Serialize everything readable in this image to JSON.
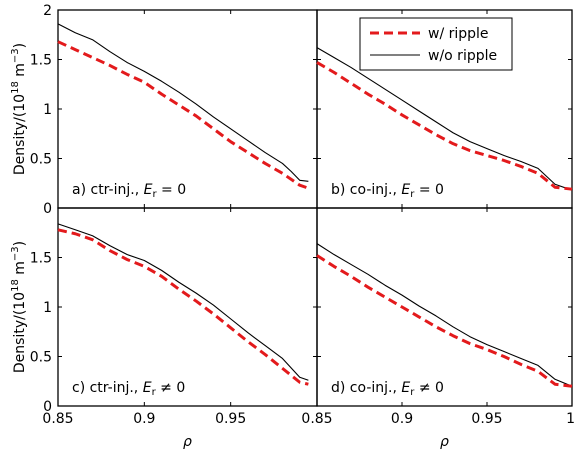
{
  "chart_data": {
    "type": "line",
    "xlabel": "ρ",
    "ylabel_main": "Density/(10",
    "ylabel_sup": "18",
    "ylabel_unit": " m",
    "ylabel_unit_sup": "−3",
    "ylabel_close": ")",
    "xlim": [
      0.85,
      1.0
    ],
    "ylim": [
      0,
      2
    ],
    "x_ticks": [
      0.85,
      0.9,
      0.95,
      1
    ],
    "x_tick_labels_left": [
      "0.85",
      "0.9",
      "0.95",
      ""
    ],
    "x_tick_labels_right": [
      "0.85",
      "0.9",
      "0.95",
      "1"
    ],
    "y_ticks": [
      0,
      0.5,
      1,
      1.5,
      2
    ],
    "y_tick_labels_top": [
      "0",
      "0.5",
      "1",
      "1.5",
      "2"
    ],
    "y_tick_labels_bottom": [
      "0",
      "0.5",
      "1",
      "1.5",
      ""
    ],
    "legend": {
      "placement": "top-right",
      "entries": [
        {
          "label": "w/ ripple",
          "color": "#e31a1c",
          "style": "dashed"
        },
        {
          "label": "w/o ripple",
          "color": "#000000",
          "style": "solid"
        }
      ]
    },
    "panels": [
      {
        "id": "a",
        "label_prefix": "a) ctr-inj., ",
        "label_var": "E",
        "label_sub": "r",
        "label_rel": " = 0",
        "series": [
          {
            "name": "w/ ripple",
            "x": [
              0.85,
              0.86,
              0.87,
              0.88,
              0.89,
              0.9,
              0.91,
              0.92,
              0.93,
              0.94,
              0.95,
              0.96,
              0.97,
              0.98,
              0.99,
              0.995
            ],
            "y": [
              1.68,
              1.6,
              1.52,
              1.44,
              1.35,
              1.27,
              1.15,
              1.04,
              0.93,
              0.8,
              0.67,
              0.56,
              0.45,
              0.35,
              0.23,
              0.2
            ]
          },
          {
            "name": "w/o ripple",
            "x": [
              0.85,
              0.86,
              0.87,
              0.88,
              0.89,
              0.9,
              0.91,
              0.92,
              0.93,
              0.94,
              0.95,
              0.96,
              0.97,
              0.98,
              0.985,
              0.99,
              0.995
            ],
            "y": [
              1.86,
              1.77,
              1.7,
              1.58,
              1.47,
              1.38,
              1.28,
              1.17,
              1.05,
              0.92,
              0.8,
              0.68,
              0.56,
              0.45,
              0.37,
              0.28,
              0.27
            ]
          }
        ]
      },
      {
        "id": "b",
        "label_prefix": "b) co-inj., ",
        "label_var": "E",
        "label_sub": "r",
        "label_rel": " = 0",
        "series": [
          {
            "name": "w/ ripple",
            "x": [
              0.85,
              0.86,
              0.87,
              0.88,
              0.89,
              0.9,
              0.91,
              0.92,
              0.93,
              0.94,
              0.95,
              0.96,
              0.97,
              0.98,
              0.99,
              1.0
            ],
            "y": [
              1.47,
              1.37,
              1.26,
              1.15,
              1.05,
              0.94,
              0.84,
              0.74,
              0.65,
              0.58,
              0.53,
              0.48,
              0.42,
              0.35,
              0.21,
              0.19
            ]
          },
          {
            "name": "w/o ripple",
            "x": [
              0.85,
              0.86,
              0.87,
              0.88,
              0.89,
              0.9,
              0.91,
              0.92,
              0.93,
              0.94,
              0.95,
              0.96,
              0.97,
              0.98,
              0.99,
              1.0
            ],
            "y": [
              1.62,
              1.52,
              1.42,
              1.31,
              1.2,
              1.09,
              0.98,
              0.87,
              0.76,
              0.67,
              0.6,
              0.53,
              0.47,
              0.4,
              0.24,
              0.18
            ]
          }
        ]
      },
      {
        "id": "c",
        "label_prefix": "c) ctr-inj., ",
        "label_var": "E",
        "label_sub": "r",
        "label_rel": " ≠ 0",
        "series": [
          {
            "name": "w/ ripple",
            "x": [
              0.85,
              0.86,
              0.87,
              0.88,
              0.89,
              0.9,
              0.91,
              0.92,
              0.93,
              0.94,
              0.95,
              0.96,
              0.97,
              0.98,
              0.99,
              0.995
            ],
            "y": [
              1.78,
              1.74,
              1.68,
              1.57,
              1.48,
              1.41,
              1.31,
              1.18,
              1.06,
              0.93,
              0.79,
              0.65,
              0.52,
              0.38,
              0.24,
              0.22
            ]
          },
          {
            "name": "w/o ripple",
            "x": [
              0.85,
              0.86,
              0.87,
              0.88,
              0.89,
              0.9,
              0.91,
              0.92,
              0.93,
              0.94,
              0.95,
              0.96,
              0.97,
              0.98,
              0.99,
              0.995
            ],
            "y": [
              1.84,
              1.78,
              1.72,
              1.62,
              1.53,
              1.47,
              1.37,
              1.25,
              1.14,
              1.02,
              0.88,
              0.74,
              0.61,
              0.48,
              0.29,
              0.26
            ]
          }
        ]
      },
      {
        "id": "d",
        "label_prefix": "d) co-inj., ",
        "label_var": "E",
        "label_sub": "r",
        "label_rel": " ≠ 0",
        "series": [
          {
            "name": "w/ ripple",
            "x": [
              0.85,
              0.86,
              0.87,
              0.88,
              0.89,
              0.9,
              0.91,
              0.92,
              0.93,
              0.94,
              0.95,
              0.96,
              0.97,
              0.98,
              0.99,
              1.0
            ],
            "y": [
              1.52,
              1.41,
              1.31,
              1.2,
              1.1,
              1.0,
              0.9,
              0.8,
              0.71,
              0.63,
              0.57,
              0.5,
              0.42,
              0.35,
              0.22,
              0.2
            ]
          },
          {
            "name": "w/o ripple",
            "x": [
              0.85,
              0.86,
              0.87,
              0.88,
              0.89,
              0.9,
              0.91,
              0.92,
              0.93,
              0.94,
              0.95,
              0.96,
              0.97,
              0.98,
              0.99,
              1.0
            ],
            "y": [
              1.64,
              1.53,
              1.43,
              1.33,
              1.22,
              1.12,
              1.01,
              0.91,
              0.8,
              0.7,
              0.62,
              0.55,
              0.48,
              0.41,
              0.27,
              0.2
            ]
          }
        ]
      }
    ]
  }
}
